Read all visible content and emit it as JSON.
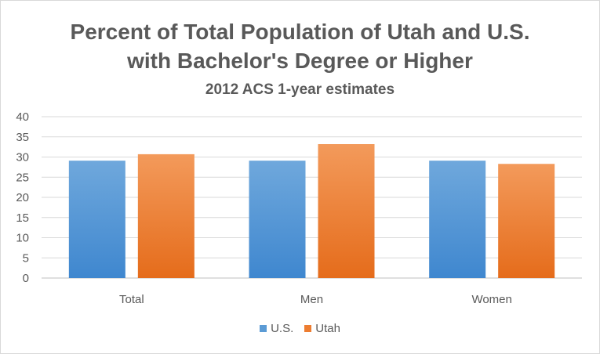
{
  "chart_data": {
    "type": "bar",
    "title": "Percent of Total Population of Utah and U.S.",
    "title_line2": "with Bachelor's Degree or Higher",
    "subtitle": "2012 ACS 1-year estimates",
    "categories": [
      "Total",
      "Men",
      "Women"
    ],
    "series": [
      {
        "name": "U.S.",
        "values": [
          29.1,
          29.1,
          29.1
        ],
        "color": "#5b9bd5"
      },
      {
        "name": "Utah",
        "values": [
          30.7,
          33.2,
          28.3
        ],
        "color": "#ed7d31"
      }
    ],
    "ylim": [
      0,
      40
    ],
    "yticks": [
      0,
      5,
      10,
      15,
      20,
      25,
      30,
      35,
      40
    ],
    "grid": true,
    "legend_position": "bottom"
  }
}
